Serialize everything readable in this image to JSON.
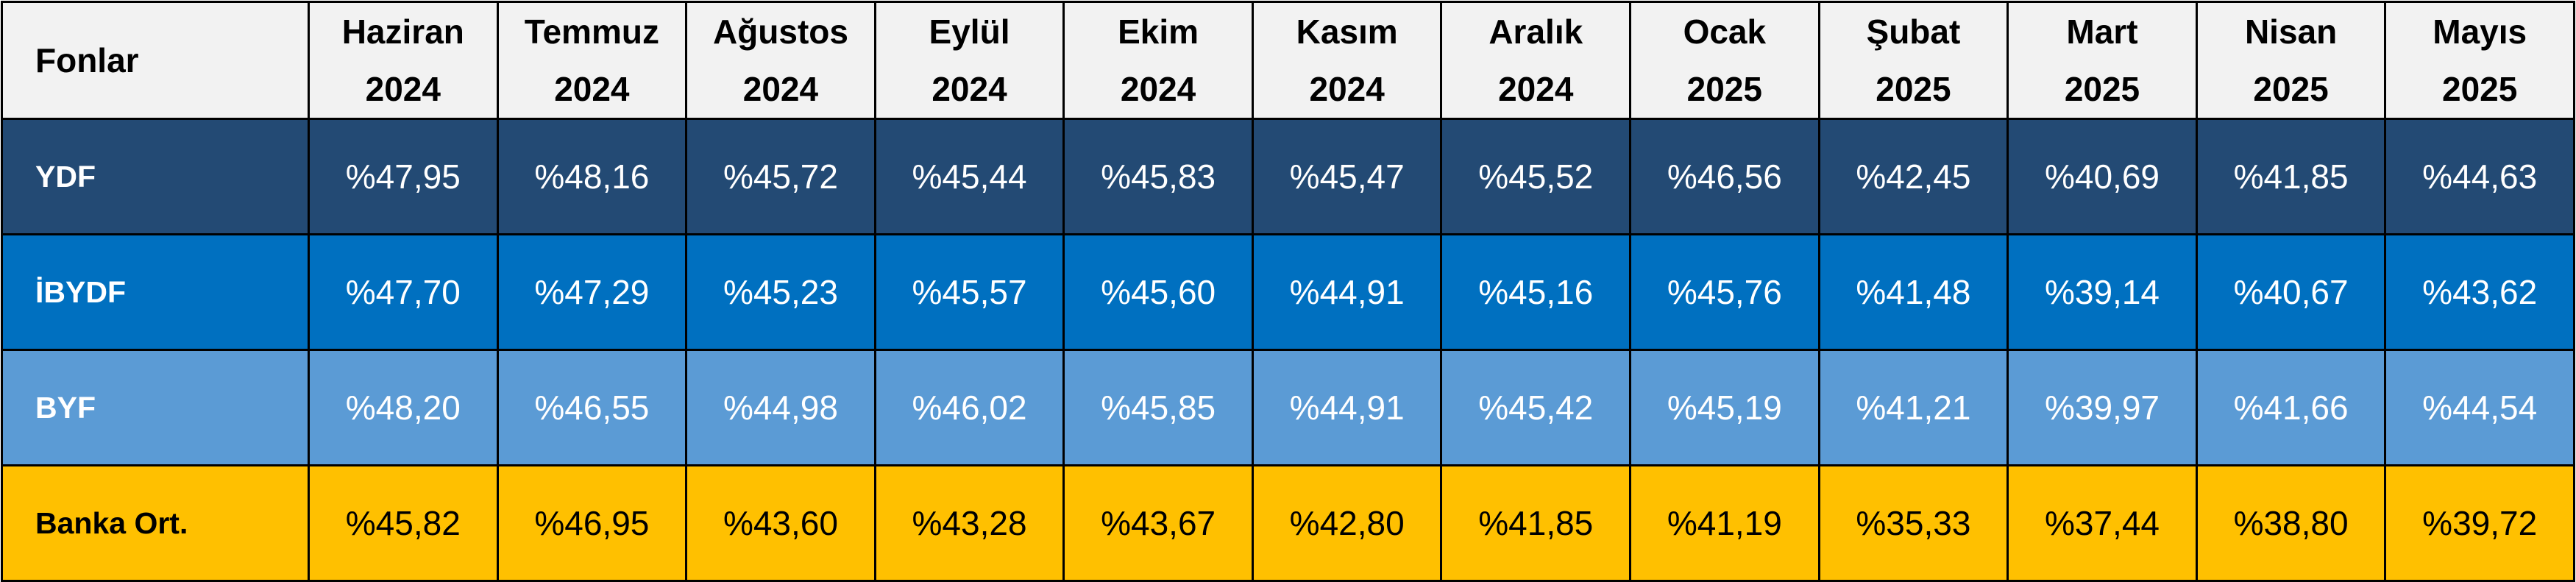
{
  "table": {
    "corner_label": "Fonlar",
    "columns": [
      {
        "month": "Haziran",
        "year": "2024"
      },
      {
        "month": "Temmuz",
        "year": "2024"
      },
      {
        "month": "Ağustos",
        "year": "2024"
      },
      {
        "month": "Eylül",
        "year": "2024"
      },
      {
        "month": "Ekim",
        "year": "2024"
      },
      {
        "month": "Kasım",
        "year": "2024"
      },
      {
        "month": "Aralık",
        "year": "2024"
      },
      {
        "month": "Ocak",
        "year": "2025"
      },
      {
        "month": "Şubat",
        "year": "2025"
      },
      {
        "month": "Mart",
        "year": "2025"
      },
      {
        "month": "Nisan",
        "year": "2025"
      },
      {
        "month": "Mayıs",
        "year": "2025"
      }
    ],
    "rows": [
      {
        "name": "YDF",
        "bg": "#234a74",
        "fg": "#ffffff",
        "values": [
          "%47,95",
          "%48,16",
          "%45,72",
          "%45,44",
          "%45,83",
          "%45,47",
          "%45,52",
          "%46,56",
          "%42,45",
          "%40,69",
          "%41,85",
          "%44,63"
        ]
      },
      {
        "name": "İBYDF",
        "bg": "#0070c0",
        "fg": "#ffffff",
        "values": [
          "%47,70",
          "%47,29",
          "%45,23",
          "%45,57",
          "%45,60",
          "%44,91",
          "%45,16",
          "%45,76",
          "%41,48",
          "%39,14",
          "%40,67",
          "%43,62"
        ]
      },
      {
        "name": "BYF",
        "bg": "#5b9bd5",
        "fg": "#ffffff",
        "values": [
          "%48,20",
          "%46,55",
          "%44,98",
          "%46,02",
          "%45,85",
          "%44,91",
          "%45,42",
          "%45,19",
          "%41,21",
          "%39,97",
          "%41,66",
          "%44,54"
        ]
      },
      {
        "name": "Banka Ort.",
        "bg": "#ffc000",
        "fg": "#000000",
        "values": [
          "%45,82",
          "%46,95",
          "%43,60",
          "%43,28",
          "%43,67",
          "%42,80",
          "%41,85",
          "%41,19",
          "%35,33",
          "%37,44",
          "%38,80",
          "%39,72"
        ]
      }
    ]
  }
}
